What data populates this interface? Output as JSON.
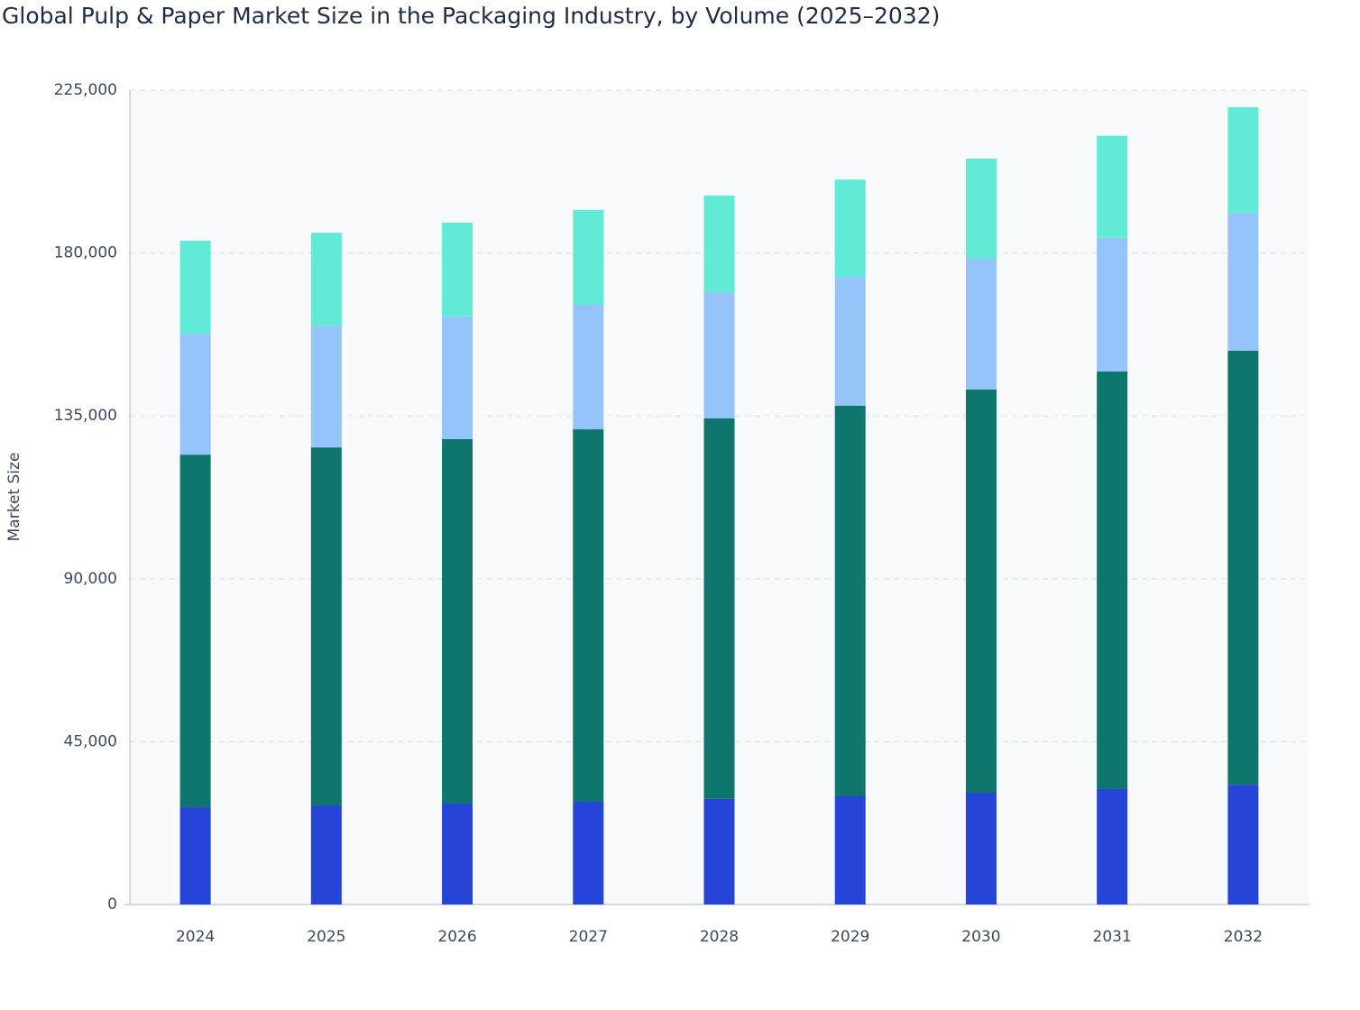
{
  "chart_data": {
    "type": "stacked-bar",
    "title": "Global Pulp & Paper Market Size in the Packaging Industry, by Volume (2025–2032)",
    "y_label": "Market Size",
    "categories": [
      "2024",
      "2025",
      "2026",
      "2027",
      "2028",
      "2029",
      "2030",
      "2031",
      "2032"
    ],
    "series": [
      {
        "color": "#2744d9",
        "values": [
          26900,
          27400,
          27900,
          28400,
          29200,
          29900,
          30900,
          31900,
          33100
        ]
      },
      {
        "color": "#0e766d",
        "values": [
          97400,
          98900,
          100700,
          102900,
          105100,
          107900,
          111400,
          115400,
          119900
        ]
      },
      {
        "color": "#95c4fb",
        "values": [
          33400,
          33600,
          33900,
          34400,
          34900,
          35600,
          36100,
          36900,
          38100
        ]
      },
      {
        "color": "#61ead6",
        "values": [
          25700,
          25700,
          25900,
          26200,
          26700,
          26900,
          27700,
          28200,
          29200
        ]
      }
    ],
    "ylim": [
      0,
      225000
    ],
    "yticks": [
      0,
      {
        "value": 45000,
        "label": "45,000"
      },
      {
        "value": 90000,
        "label": "90,000"
      },
      {
        "value": 135000,
        "label": "135,000"
      },
      {
        "value": 180000,
        "label": "180,000"
      },
      {
        "value": 225000,
        "label": "225,000"
      }
    ],
    "grid": true
  }
}
